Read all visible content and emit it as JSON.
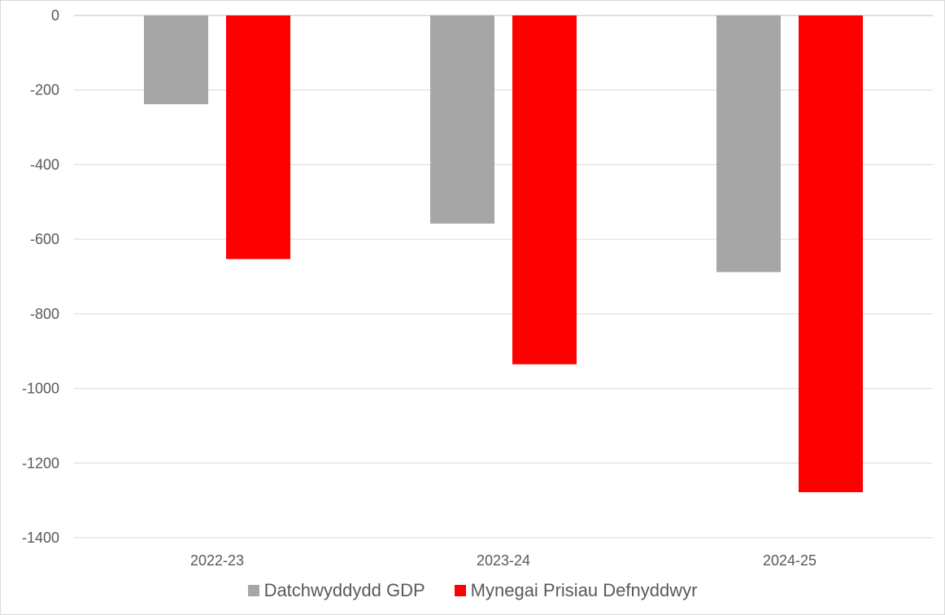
{
  "chart_data": {
    "type": "bar",
    "categories": [
      "2022-23",
      "2023-24",
      "2024-25"
    ],
    "series": [
      {
        "name": "Datchwyddydd GDP",
        "values": [
          -238,
          -558,
          -688
        ],
        "color": "#a6a6a6"
      },
      {
        "name": "Mynegai Prisiau Defnyddwyr",
        "values": [
          -653,
          -935,
          -1278
        ],
        "color": "#ff0000"
      }
    ],
    "y_ticks": [
      "0",
      "-200",
      "-400",
      "-600",
      "-800",
      "-1000",
      "-1200",
      "-1400"
    ],
    "ylim": [
      -1400,
      0
    ],
    "grid": true,
    "legend_position": "bottom",
    "title": "",
    "xlabel": "",
    "ylabel": ""
  }
}
